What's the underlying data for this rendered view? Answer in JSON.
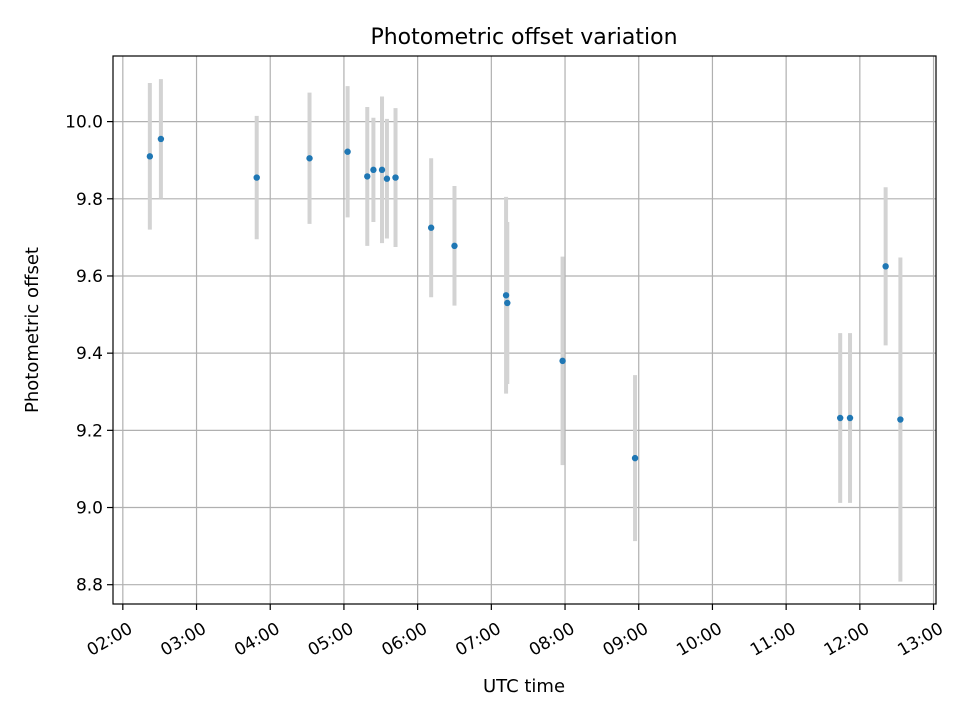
{
  "chart_data": {
    "type": "scatter",
    "title": "Photometric offset variation",
    "xlabel": "UTC time",
    "ylabel": "Photometric offset",
    "grid": true,
    "x_axis": "time",
    "xlim": [
      "01:52",
      "13:02"
    ],
    "ylim": [
      8.75,
      10.17
    ],
    "x_ticks": [
      "02:00",
      "03:00",
      "04:00",
      "05:00",
      "06:00",
      "07:00",
      "08:00",
      "09:00",
      "10:00",
      "11:00",
      "12:00",
      "13:00"
    ],
    "y_ticks": [
      8.8,
      9.0,
      9.2,
      9.4,
      9.6,
      9.8,
      10.0
    ],
    "y_tick_labels": [
      "8.8",
      "9.0",
      "9.2",
      "9.4",
      "9.6",
      "9.8",
      "10.0"
    ],
    "marker_color": "#1f77b4",
    "errorbar_color": "#d3d3d3",
    "points": [
      {
        "x": "02:22",
        "y": 9.91,
        "err": 0.19
      },
      {
        "x": "02:31",
        "y": 9.955,
        "err": 0.155
      },
      {
        "x": "03:49",
        "y": 9.855,
        "err": 0.16
      },
      {
        "x": "04:32",
        "y": 9.905,
        "err": 0.17
      },
      {
        "x": "05:03",
        "y": 9.922,
        "err": 0.17
      },
      {
        "x": "05:19",
        "y": 9.858,
        "err": 0.18
      },
      {
        "x": "05:24",
        "y": 9.875,
        "err": 0.135
      },
      {
        "x": "05:31",
        "y": 9.875,
        "err": 0.19
      },
      {
        "x": "05:35",
        "y": 9.852,
        "err": 0.155
      },
      {
        "x": "05:42",
        "y": 9.855,
        "err": 0.18
      },
      {
        "x": "06:11",
        "y": 9.725,
        "err": 0.18
      },
      {
        "x": "06:30",
        "y": 9.678,
        "err": 0.155
      },
      {
        "x": "07:12",
        "y": 9.55,
        "err": 0.255
      },
      {
        "x": "07:13",
        "y": 9.53,
        "err": 0.21
      },
      {
        "x": "07:58",
        "y": 9.38,
        "err": 0.27
      },
      {
        "x": "08:57",
        "y": 9.128,
        "err": 0.215
      },
      {
        "x": "11:44",
        "y": 9.232,
        "err": 0.22
      },
      {
        "x": "11:52",
        "y": 9.232,
        "err": 0.22
      },
      {
        "x": "12:21",
        "y": 9.625,
        "err": 0.205
      },
      {
        "x": "12:33",
        "y": 9.228,
        "err": 0.42
      }
    ]
  }
}
